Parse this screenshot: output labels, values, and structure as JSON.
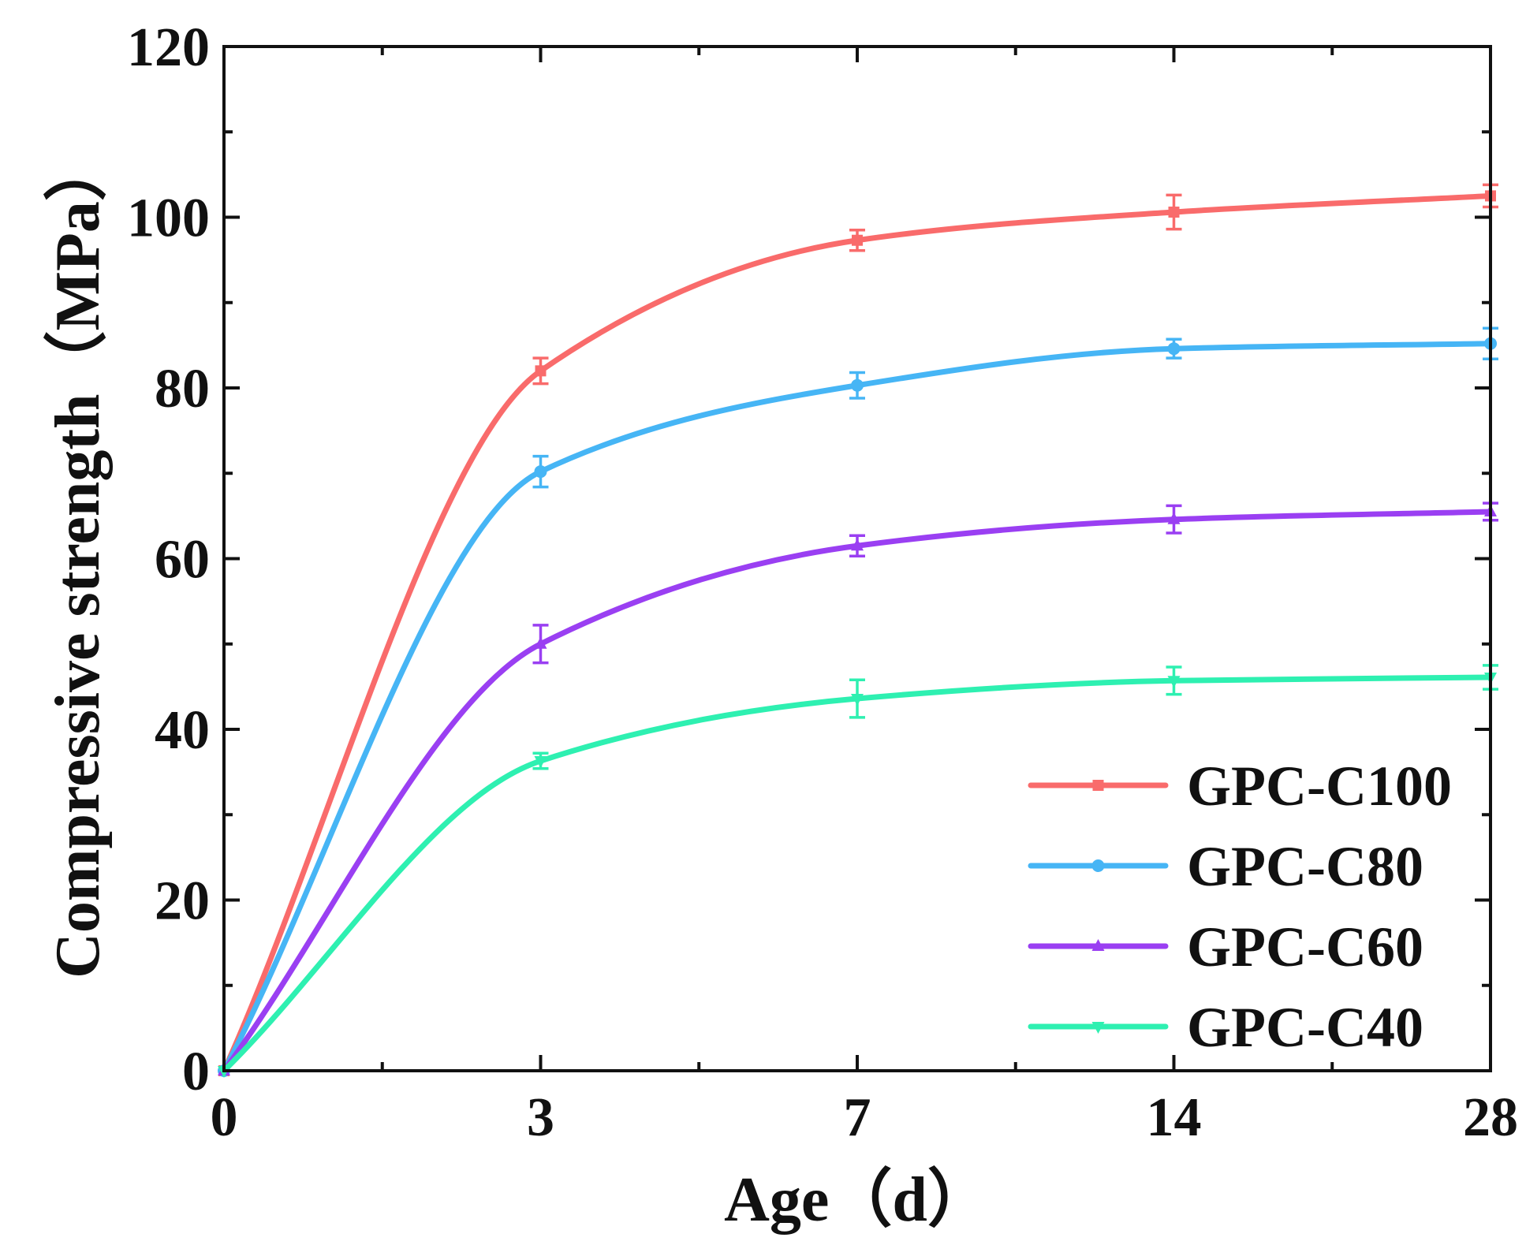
{
  "chart_data": {
    "type": "line",
    "categories": [
      "0",
      "3",
      "7",
      "14",
      "28"
    ],
    "xlabel": "Age（d）",
    "ylabel": "Compressive strength（MPa）",
    "ylim": [
      0,
      120
    ],
    "yticks": [
      "0",
      "20",
      "40",
      "60",
      "80",
      "100",
      "120"
    ],
    "grid": false,
    "legend_position": "bottom-right",
    "series": [
      {
        "name": "GPC-C100",
        "color": "#f96b6b",
        "marker": "square",
        "values": [
          0,
          82.0,
          97.3,
          100.6,
          102.5
        ],
        "errors": [
          0,
          1.5,
          1.2,
          2.0,
          1.3
        ]
      },
      {
        "name": "GPC-C80",
        "color": "#46b5f5",
        "marker": "circle",
        "values": [
          0,
          70.2,
          80.3,
          84.6,
          85.2
        ],
        "errors": [
          0,
          1.8,
          1.5,
          1.1,
          1.8
        ]
      },
      {
        "name": "GPC-C60",
        "color": "#9a3ff2",
        "marker": "triangle-up",
        "values": [
          0,
          50.0,
          61.5,
          64.6,
          65.5
        ],
        "errors": [
          0,
          2.2,
          1.2,
          1.6,
          1.0
        ]
      },
      {
        "name": "GPC-C40",
        "color": "#2ef0b1",
        "marker": "triangle-down",
        "values": [
          0,
          36.3,
          43.6,
          45.7,
          46.1
        ],
        "errors": [
          0,
          0.9,
          2.2,
          1.6,
          1.4
        ]
      }
    ]
  }
}
